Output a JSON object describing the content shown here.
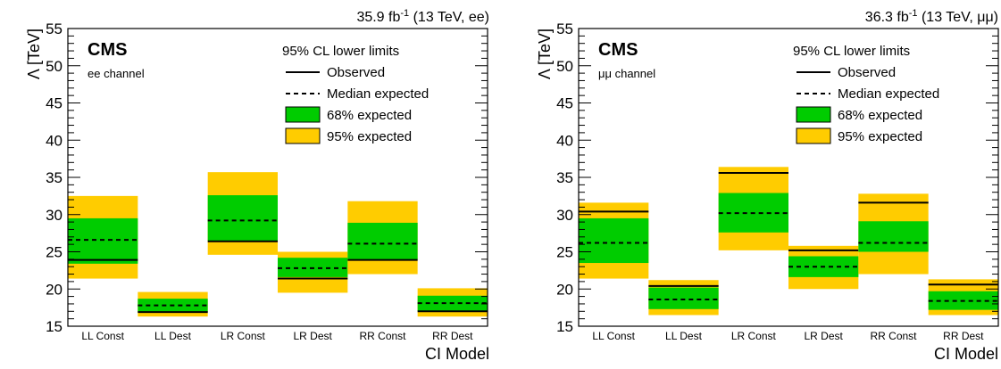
{
  "chart_data": [
    {
      "type": "bar",
      "channel_label": "ee channel",
      "experiment": "CMS",
      "lumi_value": "35.9 fb",
      "lumi_exp": "-1",
      "lumi_rest": " (13 TeV, ee)",
      "ylabel": "Λ [TeV]",
      "xlabel": "CI Model",
      "ylim": [
        15,
        55
      ],
      "yticks": [
        "15",
        "20",
        "25",
        "30",
        "35",
        "40",
        "45",
        "50",
        "55"
      ],
      "categories": [
        "LL Const",
        "LL Dest",
        "LR Const",
        "LR Dest",
        "RR Const",
        "RR Dest"
      ],
      "legend_title": "95% CL lower limits",
      "legend": [
        "Observed",
        "Median expected",
        "68% expected",
        "95% expected"
      ],
      "legend_position": "top-right",
      "colors": {
        "band68": "#00cc00",
        "band95": "#ffcc00"
      },
      "series": [
        {
          "name": "Observed",
          "values": [
            23.9,
            16.9,
            26.4,
            21.4,
            23.9,
            17.0
          ]
        },
        {
          "name": "Median expected",
          "values": [
            26.6,
            17.8,
            29.2,
            22.8,
            26.1,
            18.1
          ]
        },
        {
          "name": "68% expected",
          "values": [
            [
              23.4,
              29.5
            ],
            [
              16.9,
              18.7
            ],
            [
              26.5,
              32.6
            ],
            [
              21.6,
              24.2
            ],
            [
              24.0,
              28.9
            ],
            [
              17.0,
              19.1
            ]
          ]
        },
        {
          "name": "95% expected",
          "values": [
            [
              21.4,
              32.5
            ],
            [
              16.3,
              19.6
            ],
            [
              24.6,
              35.7
            ],
            [
              19.5,
              25.0
            ],
            [
              22.0,
              31.8
            ],
            [
              16.3,
              20.1
            ]
          ]
        }
      ]
    },
    {
      "type": "bar",
      "channel_label": "μμ channel",
      "experiment": "CMS",
      "lumi_value": "36.3 fb",
      "lumi_exp": "-1",
      "lumi_rest": " (13 TeV, μμ)",
      "ylabel": "Λ [TeV]",
      "xlabel": "CI Model",
      "ylim": [
        15,
        55
      ],
      "yticks": [
        "15",
        "20",
        "25",
        "30",
        "35",
        "40",
        "45",
        "50",
        "55"
      ],
      "categories": [
        "LL Const",
        "LL Dest",
        "LR Const",
        "LR Dest",
        "RR Const",
        "RR Dest"
      ],
      "legend_title": "95% CL lower limits",
      "legend": [
        "Observed",
        "Median expected",
        "68% expected",
        "95% expected"
      ],
      "legend_position": "top-right",
      "colors": {
        "band68": "#00cc00",
        "band95": "#ffcc00"
      },
      "series": [
        {
          "name": "Observed",
          "values": [
            30.4,
            20.4,
            35.6,
            25.2,
            31.6,
            20.6
          ]
        },
        {
          "name": "Median expected",
          "values": [
            26.2,
            18.6,
            30.2,
            23.0,
            26.2,
            18.4
          ]
        },
        {
          "name": "68% expected",
          "values": [
            [
              23.5,
              29.5
            ],
            [
              17.3,
              20.2
            ],
            [
              27.6,
              32.9
            ],
            [
              21.6,
              24.4
            ],
            [
              25.0,
              29.1
            ],
            [
              17.2,
              19.7
            ]
          ]
        },
        {
          "name": "95% expected",
          "values": [
            [
              21.4,
              31.6
            ],
            [
              16.5,
              21.2
            ],
            [
              25.2,
              36.4
            ],
            [
              20.0,
              25.8
            ],
            [
              22.0,
              32.8
            ],
            [
              16.5,
              21.3
            ]
          ]
        }
      ]
    }
  ]
}
